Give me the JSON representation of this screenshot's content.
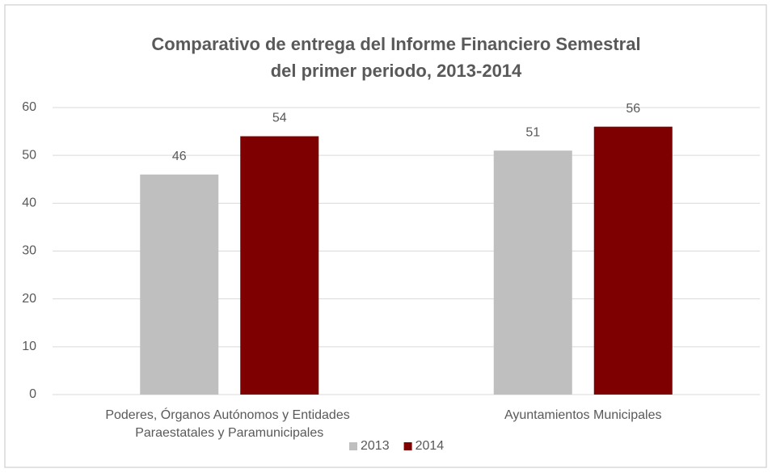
{
  "chart_data": {
    "type": "bar",
    "title": [
      "Comparativo de entrega del Informe Financiero Semestral",
      "del primer periodo, 2013-2014"
    ],
    "categories": [
      "Poderes, Órganos Autónomos y Entidades Paraestatales y Paramunicipales",
      "Ayuntamientos Municipales"
    ],
    "series": [
      {
        "name": "2013",
        "color": "#bfbfbf",
        "values": [
          46,
          51
        ]
      },
      {
        "name": "2014",
        "color": "#7f0000",
        "values": [
          54,
          56
        ]
      }
    ],
    "ylim": [
      0,
      60
    ],
    "yticks": [
      0,
      10,
      20,
      30,
      40,
      50,
      60
    ],
    "grid": true,
    "legend": "bottom"
  }
}
